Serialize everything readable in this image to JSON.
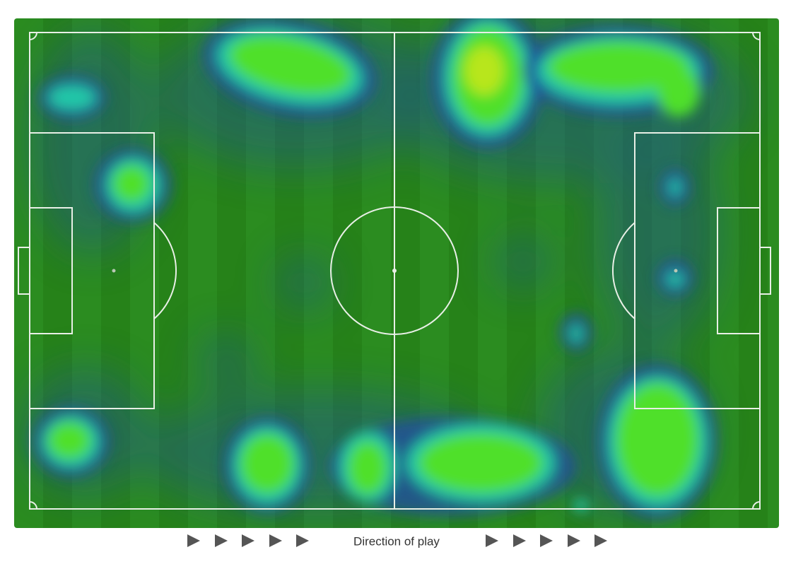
{
  "footer": {
    "label": "Direction of play"
  }
}
